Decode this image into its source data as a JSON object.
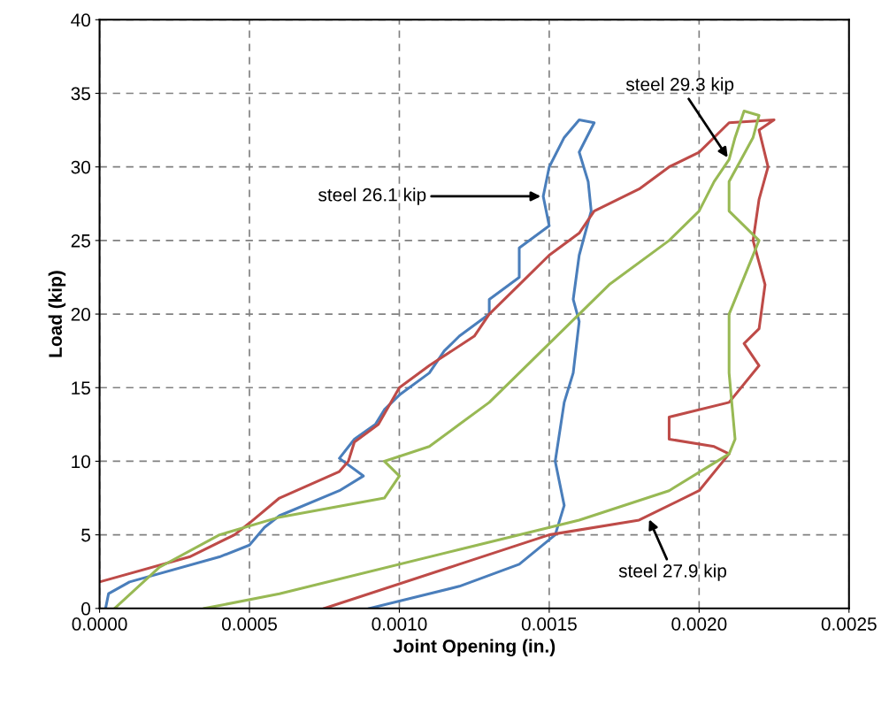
{
  "chart_data": {
    "type": "line",
    "xlabel": "Joint Opening (in.)",
    "ylabel": "Load (kip)",
    "xlim": [
      0,
      0.0025
    ],
    "ylim": [
      0,
      40
    ],
    "xticks": [
      {
        "value": 0,
        "label": "0.0000"
      },
      {
        "value": 0.0005,
        "label": "0.0005"
      },
      {
        "value": 0.001,
        "label": "0.0010"
      },
      {
        "value": 0.0015,
        "label": "0.0015"
      },
      {
        "value": 0.002,
        "label": "0.0020"
      },
      {
        "value": 0.0025,
        "label": "0.0025"
      }
    ],
    "yticks": [
      0,
      5,
      10,
      15,
      20,
      25,
      30,
      35,
      40
    ],
    "grid": true,
    "marker": "none",
    "line_style": "solid",
    "series": [
      {
        "color": "#4a7ebb",
        "x": [
          2e-05,
          3e-05,
          0.0001,
          0.0004,
          0.0005,
          0.00055,
          0.0006,
          0.0008,
          0.00088,
          0.0008,
          0.00085,
          0.00092,
          0.00095,
          0.001,
          0.0011,
          0.00115,
          0.0012,
          0.0013,
          0.0013,
          0.0014,
          0.0014,
          0.0015,
          0.00148,
          0.0015,
          0.00155,
          0.0016,
          0.00165,
          0.0016,
          0.00163,
          0.00164,
          0.0016,
          0.00158,
          0.0016,
          0.00158,
          0.00155,
          0.00152,
          0.00155,
          0.00152,
          0.0014,
          0.0012,
          0.0009
        ],
        "values": [
          0,
          1,
          1.8,
          3.5,
          4.3,
          5.5,
          6.3,
          8,
          9,
          10.2,
          11.5,
          12.5,
          13.5,
          14.5,
          16,
          17.5,
          18.5,
          20,
          21,
          22.5,
          24.5,
          26,
          28,
          30,
          32,
          33.2,
          33,
          31,
          29,
          27,
          24,
          21,
          19.5,
          16,
          14,
          10,
          7,
          5,
          3,
          1.5,
          0
        ]
      },
      {
        "color": "#be4b48",
        "x": [
          0,
          0.0003,
          0.00045,
          0.0005,
          0.0006,
          0.0008,
          0.00083,
          0.00085,
          0.00093,
          0.001,
          0.0011,
          0.00125,
          0.0013,
          0.0014,
          0.0015,
          0.0016,
          0.00165,
          0.0018,
          0.0019,
          0.002,
          0.0021,
          0.00225,
          0.0022,
          0.00223,
          0.0022,
          0.00218,
          0.00222,
          0.0022,
          0.00215,
          0.0022,
          0.0021,
          0.0019,
          0.0019,
          0.00205,
          0.0021,
          0.002,
          0.0018,
          0.0015,
          0.0012,
          0.00075
        ],
        "values": [
          1.8,
          3.5,
          5,
          5.8,
          7.5,
          9.3,
          10,
          11.3,
          12.5,
          15,
          16.5,
          18.5,
          20,
          22,
          24,
          25.5,
          27,
          28.5,
          30,
          31,
          33,
          33.2,
          32.5,
          30,
          27.8,
          25,
          22,
          19,
          18,
          16.5,
          14,
          13,
          11.5,
          11,
          10.5,
          8,
          6,
          5,
          3,
          0
        ]
      },
      {
        "color": "#98b954",
        "x": [
          5e-05,
          0.0002,
          0.0004,
          0.0006,
          0.00095,
          0.001,
          0.00095,
          0.0011,
          0.0012,
          0.0013,
          0.0014,
          0.0015,
          0.0016,
          0.0017,
          0.0019,
          0.002,
          0.00205,
          0.0021,
          0.00212,
          0.00215,
          0.0022,
          0.00218,
          0.0021,
          0.0021,
          0.0022,
          0.0021,
          0.0021,
          0.00212,
          0.0021,
          0.0019,
          0.0016,
          0.0012,
          0.0006,
          0.00035
        ],
        "values": [
          0,
          2.8,
          5,
          6.2,
          7.5,
          9,
          10,
          11,
          12.5,
          14,
          16,
          18,
          20,
          22,
          25,
          27,
          29,
          30.5,
          32,
          33.8,
          33.5,
          32,
          29,
          27,
          25,
          20,
          16,
          11.5,
          10.5,
          8,
          6,
          4,
          1,
          0
        ]
      }
    ],
    "annotations": [
      {
        "text": "steel 26.1 kip",
        "x": 0.00148,
        "y": 28
      },
      {
        "text": "steel 29.3 kip",
        "x": 0.0021,
        "y": 30.5
      },
      {
        "text": "steel 27.9 kip",
        "x": 0.00183,
        "y": 6.2
      }
    ]
  }
}
